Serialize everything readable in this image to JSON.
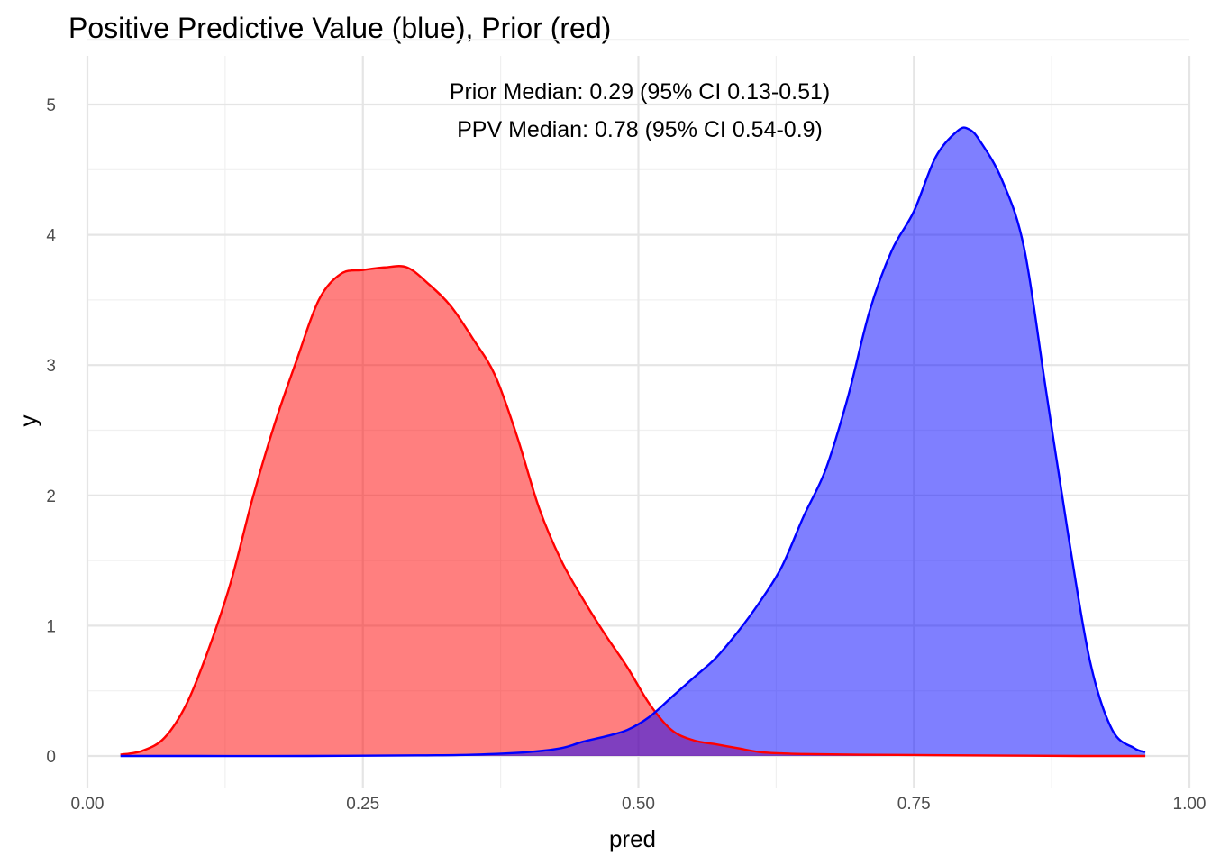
{
  "chart_data": {
    "type": "area",
    "title": "Positive Predictive Value (blue), Prior (red)",
    "xlabel": "pred",
    "ylabel": "y",
    "xlim": [
      0,
      1
    ],
    "ylim": [
      0,
      5
    ],
    "x_ticks": [
      "0.00",
      "0.25",
      "0.50",
      "0.75",
      "1.00"
    ],
    "y_ticks": [
      "0",
      "1",
      "2",
      "3",
      "4",
      "5"
    ],
    "grid": true,
    "annotations": [
      "Prior Median: 0.29 (95% CI 0.13-0.51)",
      "PPV Median: 0.78 (95% CI 0.54-0.9)"
    ],
    "series": [
      {
        "color": "#ff0000",
        "fill": "#ff0000",
        "x": [
          0.03,
          0.05,
          0.07,
          0.09,
          0.11,
          0.13,
          0.15,
          0.17,
          0.19,
          0.21,
          0.23,
          0.25,
          0.27,
          0.29,
          0.31,
          0.33,
          0.35,
          0.37,
          0.39,
          0.41,
          0.43,
          0.45,
          0.47,
          0.49,
          0.51,
          0.53,
          0.55,
          0.57,
          0.59,
          0.61,
          0.63,
          0.65,
          0.7,
          0.8,
          0.9,
          0.96
        ],
        "y": [
          0.01,
          0.04,
          0.14,
          0.4,
          0.82,
          1.33,
          1.98,
          2.55,
          3.04,
          3.5,
          3.7,
          3.73,
          3.75,
          3.75,
          3.62,
          3.45,
          3.2,
          2.92,
          2.45,
          1.9,
          1.5,
          1.2,
          0.93,
          0.68,
          0.4,
          0.2,
          0.12,
          0.09,
          0.06,
          0.03,
          0.02,
          0.015,
          0.01,
          0.005,
          0.0,
          0.0
        ]
      },
      {
        "color": "#0000ff",
        "fill": "#0000ff",
        "x": [
          0.03,
          0.1,
          0.2,
          0.3,
          0.35,
          0.4,
          0.43,
          0.45,
          0.47,
          0.49,
          0.51,
          0.53,
          0.55,
          0.57,
          0.59,
          0.61,
          0.63,
          0.65,
          0.67,
          0.69,
          0.71,
          0.73,
          0.75,
          0.77,
          0.79,
          0.8,
          0.81,
          0.83,
          0.85,
          0.87,
          0.89,
          0.91,
          0.93,
          0.95,
          0.96
        ],
        "y": [
          0.0,
          0.0,
          0.0,
          0.005,
          0.01,
          0.03,
          0.06,
          0.11,
          0.15,
          0.2,
          0.3,
          0.45,
          0.6,
          0.75,
          0.95,
          1.18,
          1.45,
          1.84,
          2.2,
          2.75,
          3.42,
          3.88,
          4.18,
          4.6,
          4.8,
          4.81,
          4.72,
          4.42,
          3.9,
          2.8,
          1.7,
          0.72,
          0.2,
          0.06,
          0.03
        ]
      }
    ]
  }
}
